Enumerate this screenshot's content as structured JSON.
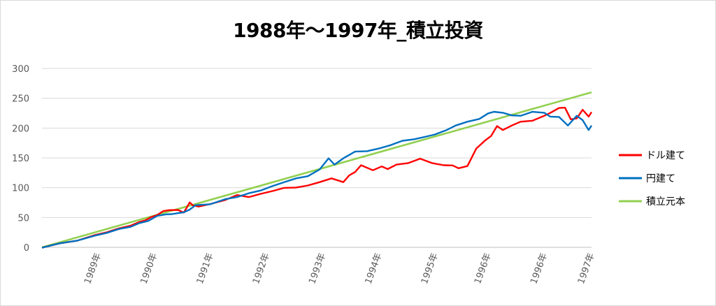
{
  "chart_data": {
    "type": "line",
    "title": "1988年～1997年_積立投資",
    "ylim": [
      0,
      300
    ],
    "y_ticks": [
      "0",
      "50",
      "100",
      "150",
      "200",
      "250",
      "300"
    ],
    "x_ticks": [
      "1989年",
      "1990年",
      "1991年",
      "1992年",
      "1993年",
      "1994年",
      "1995年",
      "1996年",
      "1996年",
      "1997年"
    ],
    "x_range": [
      0,
      9.3
    ],
    "x_tick_positions": [
      0.95,
      1.9,
      2.85,
      3.8,
      4.75,
      5.7,
      6.65,
      7.55,
      8.5,
      9.3
    ],
    "grid": true,
    "legend": "right",
    "series": [
      {
        "name": "ドル建て",
        "color": "#ff0000",
        "x": [
          0,
          0.3,
          0.6,
          0.9,
          1.1,
          1.3,
          1.5,
          1.65,
          1.75,
          1.85,
          1.95,
          2.05,
          2.15,
          2.3,
          2.4,
          2.45,
          2.5,
          2.55,
          2.65,
          2.85,
          3.1,
          3.3,
          3.5,
          3.7,
          3.9,
          4.1,
          4.3,
          4.5,
          4.7,
          4.9,
          5.1,
          5.2,
          5.3,
          5.4,
          5.6,
          5.75,
          5.85,
          6.0,
          6.2,
          6.4,
          6.6,
          6.8,
          6.95,
          7.05,
          7.2,
          7.35,
          7.5,
          7.6,
          7.7,
          7.8,
          7.95,
          8.1,
          8.3,
          8.5,
          8.6,
          8.75,
          8.85,
          8.95,
          9.05,
          9.15,
          9.25,
          9.3
        ],
        "values": [
          0,
          6,
          12,
          20,
          26,
          31,
          37,
          42,
          46,
          50,
          55,
          60,
          63,
          62,
          59,
          66,
          76,
          70,
          69,
          72,
          80,
          87,
          85,
          89,
          95,
          99,
          101,
          103,
          110,
          115,
          110,
          120,
          127,
          137,
          130,
          135,
          132,
          138,
          142,
          148,
          142,
          137,
          138,
          132,
          137,
          165,
          180,
          186,
          204,
          196,
          205,
          210,
          213,
          220,
          226,
          233,
          235,
          214,
          217,
          230,
          220,
          226
        ]
      },
      {
        "name": "円建て",
        "color": "#0070c0",
        "x": [
          0,
          0.3,
          0.6,
          0.9,
          1.1,
          1.3,
          1.5,
          1.65,
          1.8,
          1.95,
          2.1,
          2.2,
          2.3,
          2.4,
          2.5,
          2.6,
          2.85,
          3.1,
          3.3,
          3.5,
          3.7,
          3.9,
          4.1,
          4.3,
          4.5,
          4.7,
          4.85,
          4.95,
          5.1,
          5.3,
          5.5,
          5.7,
          5.9,
          6.1,
          6.3,
          6.5,
          6.65,
          6.85,
          7.0,
          7.2,
          7.4,
          7.55,
          7.65,
          7.8,
          7.95,
          8.1,
          8.3,
          8.5,
          8.6,
          8.75,
          8.9,
          9.05,
          9.15,
          9.25,
          9.3
        ],
        "values": [
          0,
          6,
          12,
          19,
          25,
          30,
          35,
          40,
          45,
          52,
          56,
          55,
          58,
          58,
          64,
          70,
          73,
          80,
          85,
          90,
          96,
          102,
          110,
          115,
          120,
          130,
          150,
          138,
          150,
          160,
          162,
          165,
          172,
          178,
          182,
          185,
          190,
          196,
          205,
          210,
          216,
          224,
          228,
          225,
          222,
          220,
          228,
          225,
          220,
          218,
          205,
          220,
          214,
          196,
          205
        ]
      },
      {
        "name": "積立元本",
        "color": "#92d050",
        "x": [
          0,
          9.3
        ],
        "values": [
          0,
          260
        ]
      }
    ]
  }
}
